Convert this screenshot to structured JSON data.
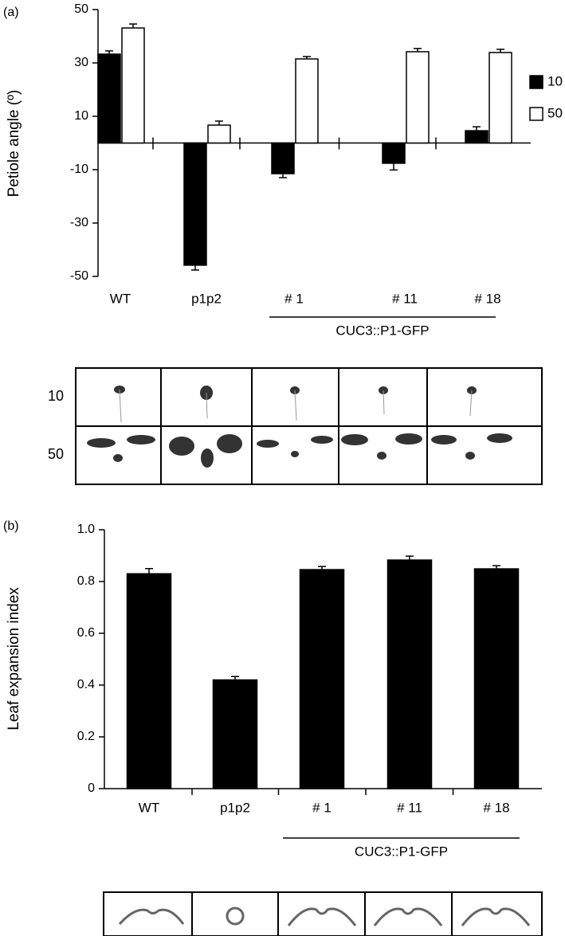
{
  "chart_data": [
    {
      "type": "bar",
      "panel_label": "(a)",
      "ylabel": "Petiole angle (º)",
      "categories": [
        "WT",
        "p1p2",
        "# 1",
        "# 11",
        "# 18"
      ],
      "group_label": "CUC3::P1-GFP",
      "series": [
        {
          "name": "10",
          "color": "#000000",
          "values": [
            33.3,
            -45.8,
            -11.5,
            -7.6,
            4.6
          ],
          "errors": [
            1.2,
            1.8,
            1.5,
            2.5,
            1.5
          ]
        },
        {
          "name": "50",
          "color": "#ffffff",
          "values": [
            43.1,
            6.7,
            31.5,
            34.2,
            33.9
          ],
          "errors": [
            1.5,
            1.5,
            0.9,
            1.2,
            1.2
          ]
        }
      ],
      "ylim": [
        -50,
        50
      ],
      "yticks": [
        50,
        30,
        10,
        -10,
        -30,
        -50
      ]
    },
    {
      "type": "bar",
      "panel_label": "(b)",
      "ylabel": "Leaf expansion index",
      "categories": [
        "WT",
        "p1p2",
        "# 1",
        "# 11",
        "# 18"
      ],
      "group_label": "CUC3::P1-GFP",
      "series": [
        {
          "color": "#000000",
          "values": [
            0.83,
            0.42,
            0.846,
            0.883,
            0.849
          ],
          "errors": [
            0.02,
            0.013,
            0.012,
            0.015,
            0.012
          ]
        }
      ],
      "ylim": [
        0,
        1
      ],
      "yticks": [
        0,
        0.2,
        0.4,
        0.6,
        0.8,
        {
          "value": 1,
          "label": "1.0"
        }
      ]
    }
  ],
  "photo_rows": [
    "10",
    "50"
  ]
}
